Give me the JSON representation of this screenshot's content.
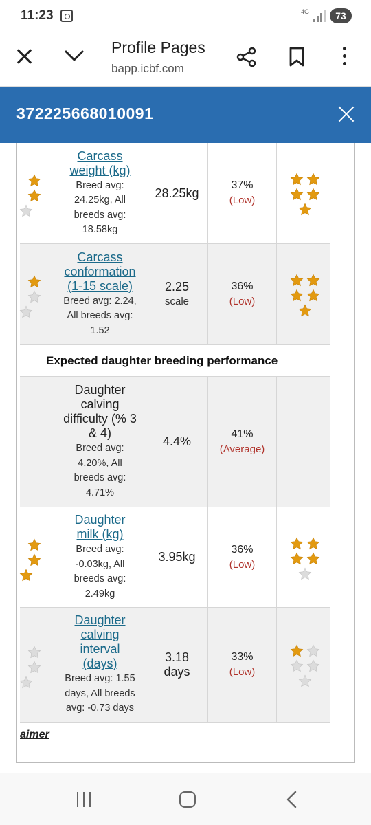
{
  "status_bar": {
    "time": "11:23",
    "network": "4G",
    "battery": "73"
  },
  "browser": {
    "title": "Profile Pages",
    "url": "bapp.icbf.com"
  },
  "modal": {
    "title": "372225668010091"
  },
  "rows_top": [
    {
      "trait": [
        "Carcass",
        "weight (kg)"
      ],
      "sub": [
        "Breed avg:",
        "24.25kg, All",
        "breeds avg:",
        "18.58kg"
      ],
      "value": "28.25kg",
      "value_unit": "",
      "reliability": "37%",
      "reliability_level": "(Low)",
      "left_stars_filled": 2,
      "right_stars_filled": 5,
      "right_stars_total": 5
    },
    {
      "trait": [
        "Carcass",
        "conformation",
        "(1-15 scale)"
      ],
      "sub": [
        "Breed avg: 2.24,",
        "All breeds avg:",
        "1.52"
      ],
      "value": "2.25",
      "value_unit": "scale",
      "reliability": "36%",
      "reliability_level": "(Low)",
      "left_stars_filled": 1,
      "right_stars_filled": 5,
      "right_stars_total": 5
    }
  ],
  "section_title": "Expected daughter breeding performance",
  "rows_bottom": [
    {
      "trait": [
        "Daughter",
        "calving",
        "difficulty (% 3",
        "& 4)"
      ],
      "sub": [
        "Breed avg:",
        "4.20%, All",
        "breeds avg:",
        "4.71%"
      ],
      "value": "4.4%",
      "value_unit": "",
      "reliability": "41%",
      "reliability_level": "(Average)",
      "left_stars_filled": 0,
      "right_stars_filled": 0,
      "right_stars_total": 0
    },
    {
      "trait": [
        "Daughter",
        "milk (kg)"
      ],
      "sub": [
        "Breed avg:",
        "-0.03kg, All",
        "breeds avg:",
        "2.49kg"
      ],
      "value": "3.95kg",
      "value_unit": "",
      "reliability": "36%",
      "reliability_level": "(Low)",
      "left_stars_filled": 3,
      "right_stars_filled": 4,
      "right_stars_total": 5
    },
    {
      "trait": [
        "Daughter",
        "calving",
        "interval",
        "(days)"
      ],
      "sub": [
        "Breed avg: 1.55",
        "days, All breeds",
        "avg: -0.73 days"
      ],
      "value": "3.18",
      "value_unit": "days",
      "reliability": "33%",
      "reliability_level": "(Low)",
      "left_stars_filled": 0,
      "right_stars_filled": 1,
      "right_stars_total": 5
    }
  ],
  "disclaimer": "aimer",
  "colors": {
    "header_blue": "#2a6db0",
    "link": "#1b6a8a",
    "low_red": "#b0322a",
    "star_gold": "#e39a10",
    "star_grey": "#dcdcdc"
  }
}
